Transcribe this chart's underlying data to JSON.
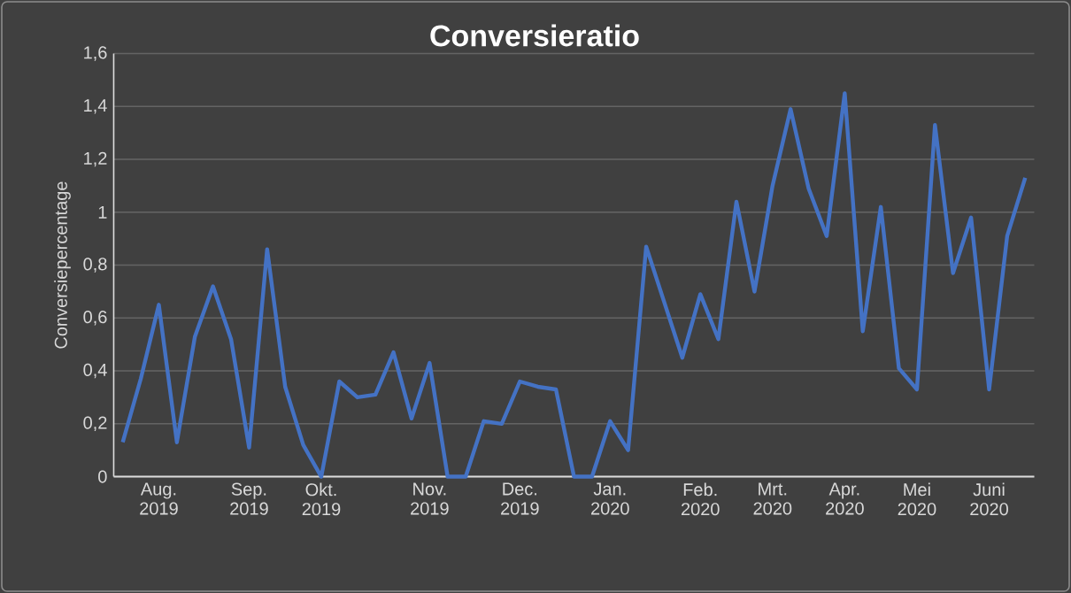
{
  "chart_data": {
    "type": "line",
    "title": "Conversieratio",
    "ylabel": "Conversiepercentage",
    "categories": [
      null,
      null,
      "Aug. 2019",
      null,
      null,
      null,
      null,
      "Sep. 2019",
      null,
      null,
      null,
      "Okt. 2019",
      null,
      null,
      null,
      null,
      null,
      "Nov. 2019",
      null,
      null,
      null,
      null,
      "Dec. 2019",
      null,
      null,
      null,
      null,
      "Jan. 2020",
      null,
      null,
      null,
      null,
      "Feb. 2020",
      null,
      null,
      null,
      "Mrt. 2020",
      null,
      null,
      null,
      "Apr. 2020",
      null,
      null,
      null,
      "Mei 2020",
      null,
      null,
      null,
      "Juni 2020",
      null,
      null
    ],
    "series": [
      {
        "color": "#4472c4",
        "values": [
          0.13,
          0.37,
          0.65,
          0.13,
          0.53,
          0.72,
          0.52,
          0.11,
          0.86,
          0.34,
          0.12,
          0.0,
          0.36,
          0.3,
          0.31,
          0.47,
          0.22,
          0.43,
          0.0,
          0.0,
          0.21,
          0.2,
          0.36,
          0.34,
          0.33,
          0.0,
          0.0,
          0.21,
          0.1,
          0.87,
          0.66,
          0.45,
          0.69,
          0.52,
          1.04,
          0.7,
          1.1,
          1.39,
          1.09,
          0.91,
          1.45,
          0.55,
          1.02,
          0.41,
          0.33,
          1.33,
          0.77,
          0.98,
          0.33,
          0.91,
          1.13
        ]
      }
    ],
    "ylim": [
      0,
      1.6
    ],
    "yticks": [
      0,
      {
        "value": 0.2,
        "label": "0,2"
      },
      {
        "value": 0.4,
        "label": "0,4"
      },
      {
        "value": 0.6,
        "label": "0,6"
      },
      {
        "value": 0.8,
        "label": "0,8"
      },
      1,
      {
        "value": 1.2,
        "label": "1,2"
      },
      {
        "value": 1.4,
        "label": "1,4"
      },
      {
        "value": 1.6,
        "label": "1,6"
      }
    ],
    "grid": "y",
    "legend": false,
    "marker": "none",
    "line_style": "solid"
  }
}
